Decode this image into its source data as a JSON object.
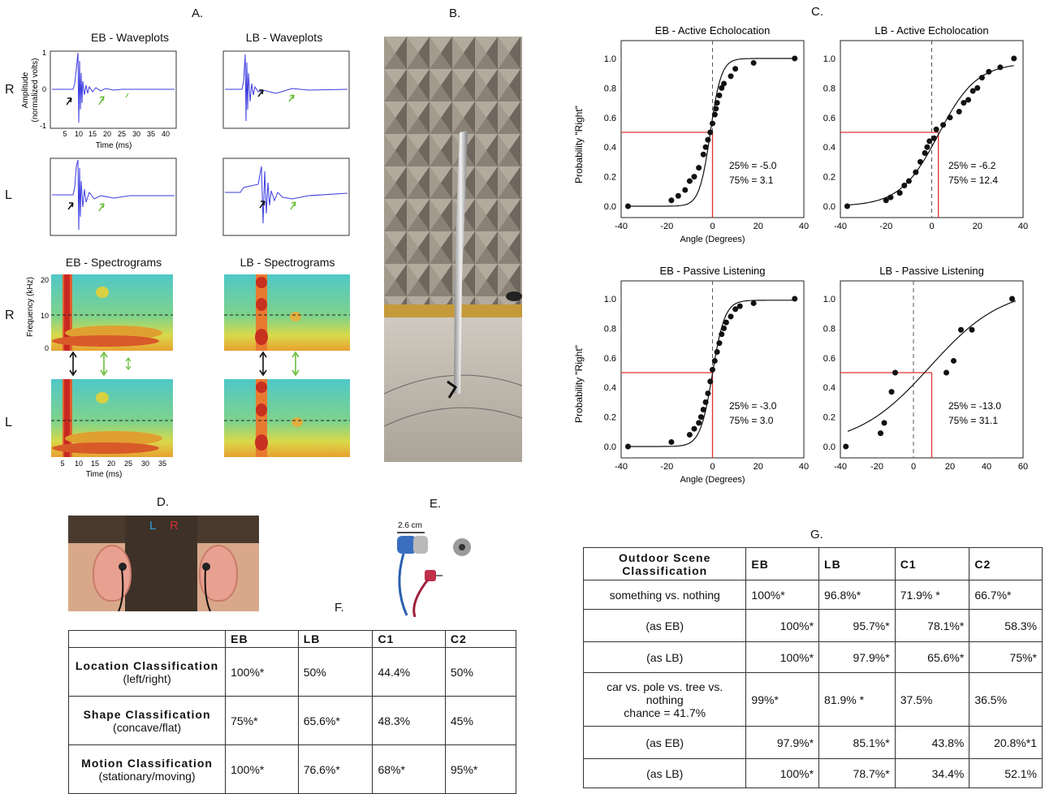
{
  "panels": {
    "A": "A.",
    "B": "B.",
    "C": "C.",
    "D": "D.",
    "E": "E.",
    "F": "F.",
    "G": "G."
  },
  "panelA": {
    "eb_wave_title": "EB - Waveplots",
    "lb_wave_title": "LB - Waveplots",
    "eb_spec_title": "EB - Spectrograms",
    "lb_spec_title": "LB - Spectrograms",
    "row_R": "R",
    "row_L": "L",
    "wave_ylabel_1": "Amplitude",
    "wave_ylabel_2": "(normalized volts)",
    "wave_yticks": [
      "1",
      "0",
      "-1"
    ],
    "wave_xticks": [
      "5",
      "10",
      "15",
      "20",
      "25",
      "30",
      "35",
      "40"
    ],
    "time_label": "Time (ms)",
    "spec_ylabel": "Frequency (kHz)",
    "spec_yticks": [
      "20",
      "10",
      "0"
    ],
    "spec_xticks": [
      "5",
      "10",
      "15",
      "20",
      "25",
      "30",
      "35"
    ]
  },
  "panelC": {
    "ylabel": "Probability \"Right\"",
    "xlabel": "Angle (Degrees)",
    "colors": {
      "fit": "#111111",
      "threshold": "#e03030",
      "dash": "#555555"
    },
    "yticks": [
      "0.0",
      "0.2",
      "0.4",
      "0.6",
      "0.8",
      "1.0"
    ],
    "xticks": [
      "-40",
      "-20",
      "0",
      "20",
      "40"
    ],
    "xticks_lb_pl": [
      "-40",
      "-20",
      "0",
      "20",
      "40",
      "60"
    ]
  },
  "chart_data": [
    {
      "type": "scatter",
      "title": "EB - Active Echolocation",
      "xlabel": "Angle (Degrees)",
      "ylabel": "Probability \"Right\"",
      "xlim": [
        -40,
        40
      ],
      "ylim": [
        0,
        1
      ],
      "points": [
        [
          -37,
          0
        ],
        [
          -18,
          0.04
        ],
        [
          -15,
          0.07
        ],
        [
          -12,
          0.11
        ],
        [
          -10,
          0.17
        ],
        [
          -8,
          0.2
        ],
        [
          -6,
          0.26
        ],
        [
          -4,
          0.35
        ],
        [
          -3,
          0.4
        ],
        [
          -2,
          0.45
        ],
        [
          -1,
          0.5
        ],
        [
          0,
          0.56
        ],
        [
          1,
          0.62
        ],
        [
          1.5,
          0.66
        ],
        [
          2,
          0.7
        ],
        [
          3,
          0.75
        ],
        [
          4,
          0.8
        ],
        [
          5,
          0.83
        ],
        [
          8,
          0.88
        ],
        [
          10,
          0.93
        ],
        [
          18,
          0.97
        ],
        [
          36,
          1.0
        ]
      ],
      "fit": {
        "center": -0.95,
        "scale": 2.4,
        "lo": 0,
        "hi": 1
      },
      "threshold": {
        "x": 0,
        "y": 0.5
      },
      "annotation": [
        "25% = -5.0",
        "75% =  3.1"
      ]
    },
    {
      "type": "scatter",
      "title": "LB - Active Echolocation",
      "xlabel": "",
      "ylabel": "",
      "xlim": [
        -40,
        40
      ],
      "ylim": [
        0,
        1
      ],
      "points": [
        [
          -37,
          0
        ],
        [
          -20,
          0.04
        ],
        [
          -18,
          0.06
        ],
        [
          -14,
          0.09
        ],
        [
          -12,
          0.14
        ],
        [
          -10,
          0.17
        ],
        [
          -7,
          0.23
        ],
        [
          -5,
          0.3
        ],
        [
          -3,
          0.36
        ],
        [
          -2,
          0.4
        ],
        [
          -1,
          0.44
        ],
        [
          1,
          0.46
        ],
        [
          2,
          0.52
        ],
        [
          5,
          0.55
        ],
        [
          8,
          0.6
        ],
        [
          12,
          0.64
        ],
        [
          14,
          0.7
        ],
        [
          16,
          0.72
        ],
        [
          18,
          0.78
        ],
        [
          20,
          0.8
        ],
        [
          22,
          0.87
        ],
        [
          25,
          0.91
        ],
        [
          30,
          0.94
        ],
        [
          36,
          1.0
        ]
      ],
      "fit": {
        "center": 2.9,
        "scale": 8.4,
        "lo": 0,
        "hi": 0.97
      },
      "threshold": {
        "x": 2.9,
        "y": 0.5
      },
      "annotation": [
        "25% = -6.2",
        "75% = 12.4"
      ]
    },
    {
      "type": "scatter",
      "title": "EB - Passive Listening",
      "xlabel": "Angle (Degrees)",
      "ylabel": "Probability \"Right\"",
      "xlim": [
        -40,
        40
      ],
      "ylim": [
        0,
        1
      ],
      "points": [
        [
          -37,
          0
        ],
        [
          -18,
          0.03
        ],
        [
          -10,
          0.08
        ],
        [
          -8,
          0.12
        ],
        [
          -6,
          0.16
        ],
        [
          -5,
          0.2
        ],
        [
          -4,
          0.25
        ],
        [
          -3,
          0.3
        ],
        [
          -2,
          0.36
        ],
        [
          -1,
          0.44
        ],
        [
          0,
          0.52
        ],
        [
          1,
          0.58
        ],
        [
          2,
          0.64
        ],
        [
          3,
          0.7
        ],
        [
          4,
          0.76
        ],
        [
          5,
          0.8
        ],
        [
          6,
          0.84
        ],
        [
          8,
          0.88
        ],
        [
          10,
          0.93
        ],
        [
          12,
          0.95
        ],
        [
          18,
          0.97
        ],
        [
          36,
          1.0
        ]
      ],
      "fit": {
        "center": 0,
        "scale": 2.7,
        "lo": 0,
        "hi": 0.99
      },
      "threshold": {
        "x": 0,
        "y": 0.5
      },
      "annotation": [
        "25% = -3.0",
        "75% =  3.0"
      ]
    },
    {
      "type": "scatter",
      "title": "LB - Passive Listening",
      "xlabel": "",
      "ylabel": "",
      "xlim": [
        -40,
        60
      ],
      "ylim": [
        0,
        1
      ],
      "points": [
        [
          -37,
          0
        ],
        [
          -18,
          0.09
        ],
        [
          -16,
          0.16
        ],
        [
          -12,
          0.37
        ],
        [
          -10,
          0.5
        ],
        [
          18,
          0.5
        ],
        [
          22,
          0.58
        ],
        [
          26,
          0.79
        ],
        [
          32,
          0.79
        ],
        [
          54,
          1.0
        ]
      ],
      "fit": {
        "center": 9,
        "scale": 20,
        "lo": 0,
        "hi": 1.08
      },
      "threshold": {
        "x": 10,
        "y": 0.5
      },
      "annotation": [
        "25% = -13.0",
        "75% =  31.1"
      ]
    }
  ],
  "panelE": {
    "scale_label": "2.6 cm"
  },
  "panelD": {
    "left_tag": "L",
    "right_tag": "R"
  },
  "tableF": {
    "headers": [
      "",
      "EB",
      "LB",
      "C1",
      "C2"
    ],
    "rows": [
      {
        "title": "Location Classification",
        "sub": "(left/right)",
        "vals": [
          "100%*",
          "50%",
          "44.4%",
          "50%"
        ]
      },
      {
        "title": "Shape Classification",
        "sub": "(concave/flat)",
        "vals": [
          "75%*",
          "65.6%*",
          "48.3%",
          "45%"
        ]
      },
      {
        "title": "Motion Classification",
        "sub": "(stationary/moving)",
        "vals": [
          "100%*",
          "76.6%*",
          "68%*",
          "95%*"
        ]
      }
    ]
  },
  "tableG": {
    "headers": [
      "Outdoor Scene Classification",
      "EB",
      "LB",
      "C1",
      "C2"
    ],
    "rows": [
      {
        "label": "something vs. nothing",
        "vals": [
          "100%*",
          "96.8%*",
          "71.9% *",
          "66.7%*"
        ]
      },
      {
        "label": "(as EB)",
        "vals": [
          "100%*",
          "95.7%*",
          "78.1%*",
          "58.3%"
        ]
      },
      {
        "label": "(as LB)",
        "vals": [
          "100%*",
          "97.9%*",
          "65.6%*",
          "75%*"
        ]
      },
      {
        "label": "car vs. pole vs. tree vs. nothing",
        "label2": "chance = 41.7%",
        "vals": [
          "99%*",
          "81.9% *",
          "37.5%",
          "36.5%"
        ]
      },
      {
        "label": "(as EB)",
        "vals": [
          "97.9%*",
          "85.1%*",
          "43.8%",
          "20.8%*1"
        ]
      },
      {
        "label": "(as LB)",
        "vals": [
          "100%*",
          "78.7%*",
          "34.4%",
          "52.1%"
        ]
      }
    ]
  }
}
